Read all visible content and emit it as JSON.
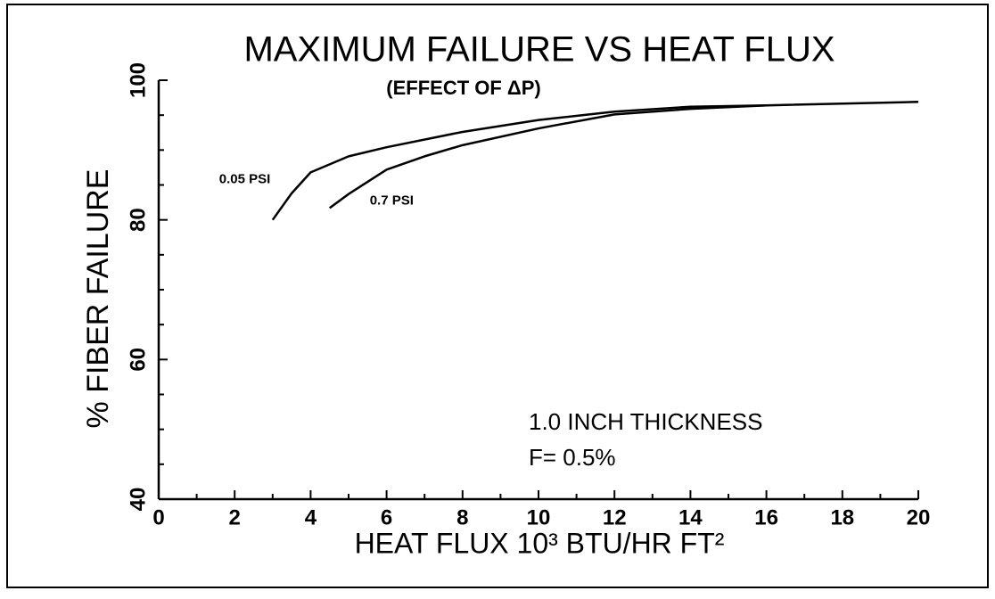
{
  "chart_data": {
    "type": "line",
    "title": "MAXIMUM FAILURE VS HEAT FLUX",
    "subtitle": "(EFFECT OF ΔP)",
    "xlabel": "HEAT FLUX  10³ BTU/HR FT²",
    "ylabel": "% FIBER FAILURE",
    "annotations": [
      "1.0 INCH THICKNESS",
      "F= 0.5%"
    ],
    "xlim": [
      0,
      20
    ],
    "xticks": [
      0,
      2,
      4,
      6,
      8,
      10,
      12,
      14,
      16,
      18,
      20
    ],
    "xticks_minor": [
      1,
      3,
      5,
      7,
      9,
      11,
      13,
      15,
      17,
      19
    ],
    "ylim": [
      40,
      100
    ],
    "yticks": [
      40,
      60,
      80,
      100
    ],
    "yticks_minor": [
      45,
      50,
      55,
      65,
      70,
      75,
      85,
      90,
      95
    ],
    "color": "#000000",
    "series": [
      {
        "name": "0.05 PSI",
        "x": [
          3,
          3.5,
          4,
          5,
          6,
          8,
          10,
          12,
          14,
          16,
          20
        ],
        "values": [
          80,
          83.8,
          86.8,
          89.1,
          90.4,
          92.6,
          94.3,
          95.5,
          96.2,
          96.4,
          96.9
        ]
      },
      {
        "name": "0.7 PSI",
        "x": [
          4.5,
          5,
          6,
          7,
          8,
          10,
          12,
          14,
          16
        ],
        "values": [
          81.7,
          83.7,
          87.2,
          89.1,
          90.7,
          93.1,
          95.1,
          95.9,
          96.4
        ]
      }
    ]
  }
}
